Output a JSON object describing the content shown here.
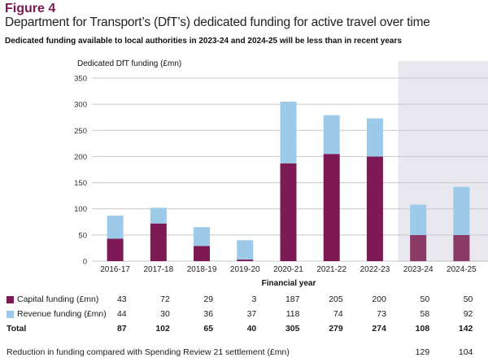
{
  "figure": {
    "label": "Figure 4",
    "title": "Department for Transport’s (DfT’s) dedicated funding for active travel over time",
    "subtitle": "Dedicated funding available to local authorities in 2023-24 and 2024-25 will be less than in recent years"
  },
  "colors": {
    "capital": "#7d1a55",
    "capital_shaded": "#8a3a66",
    "revenue": "#9ccae8",
    "shaded_region": "#e9e8ef",
    "grid": "#c8c8c8"
  },
  "chart_data": {
    "type": "bar",
    "stacked": true,
    "title": "Department for Transport’s (DfT’s) dedicated funding for active travel over time",
    "ylabel": "Dedicated DfT funding (£mn)",
    "xlabel": "Financial year",
    "ylim": [
      0,
      350
    ],
    "yticks": [
      0,
      50,
      100,
      150,
      200,
      250,
      300,
      350
    ],
    "grid": true,
    "categories": [
      "2016-17",
      "2017-18",
      "2018-19",
      "2019-20",
      "2020-21",
      "2021-22",
      "2022-23",
      "2023-24",
      "2024-25"
    ],
    "shaded_categories": [
      "2023-24",
      "2024-25"
    ],
    "series": [
      {
        "name": "Capital funding (£mn)",
        "values": [
          43,
          72,
          29,
          3,
          187,
          205,
          200,
          50,
          50
        ]
      },
      {
        "name": "Revenue funding (£mn)",
        "values": [
          44,
          30,
          36,
          37,
          118,
          74,
          73,
          58,
          92
        ]
      }
    ],
    "totals": {
      "label": "Total",
      "values": [
        87,
        102,
        65,
        40,
        305,
        279,
        274,
        108,
        142
      ]
    },
    "reduction": {
      "label": "Reduction in funding compared with Spending Review 21 settlement (£mn)",
      "values": [
        null,
        null,
        null,
        null,
        null,
        null,
        null,
        129,
        104
      ]
    }
  }
}
